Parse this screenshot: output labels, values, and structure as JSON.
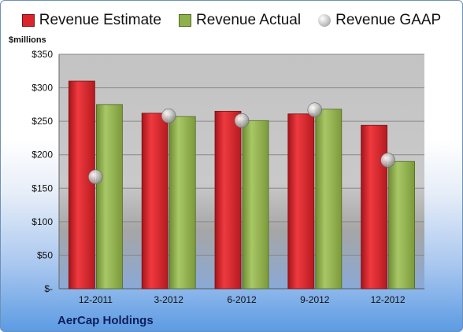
{
  "legend": {
    "estimate": "Revenue Estimate",
    "actual": "Revenue Actual",
    "gaap": "Revenue GAAP"
  },
  "unit_label": "$millions",
  "company": "AerCap Holdings",
  "colors": {
    "estimate": "#d9252b",
    "actual": "#8fb04a",
    "gaap": "#b8b8b8"
  },
  "chart_data": {
    "type": "bar",
    "title": "",
    "xlabel": "",
    "ylabel": "$millions",
    "ylim": [
      0,
      350
    ],
    "yticks": [
      {
        "value": 0,
        "label": "$-"
      },
      {
        "value": 50,
        "label": "$50"
      },
      {
        "value": 100,
        "label": "$100"
      },
      {
        "value": 150,
        "label": "$150"
      },
      {
        "value": 200,
        "label": "$200"
      },
      {
        "value": 250,
        "label": "$250"
      },
      {
        "value": 300,
        "label": "$300"
      },
      {
        "value": 350,
        "label": "$350"
      }
    ],
    "grid": true,
    "legend_position": "top",
    "categories": [
      "12-2011",
      "3-2012",
      "6-2012",
      "9-2012",
      "12-2012"
    ],
    "series": [
      {
        "name": "Revenue Estimate",
        "kind": "bar",
        "values": [
          310,
          262,
          265,
          261,
          244
        ]
      },
      {
        "name": "Revenue Actual",
        "kind": "bar",
        "values": [
          275,
          257,
          251,
          268,
          190
        ]
      },
      {
        "name": "Revenue GAAP",
        "kind": "marker",
        "values": [
          167,
          258,
          251,
          267,
          192
        ]
      }
    ]
  }
}
